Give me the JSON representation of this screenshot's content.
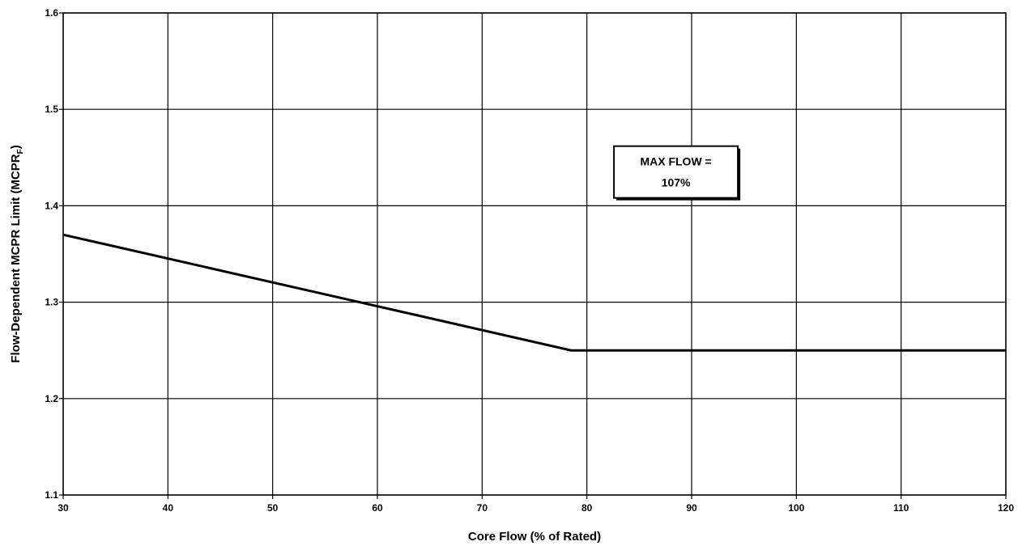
{
  "chart_data": {
    "type": "line",
    "title": "",
    "xlabel": "Core Flow (% of Rated)",
    "ylabel_main": "Flow-Dependent MCPR Limit (MCPR",
    "ylabel_sub": "F",
    "ylabel_close": ")",
    "xlim": [
      30,
      120
    ],
    "ylim": [
      1.1,
      1.6
    ],
    "x_ticks": [
      30,
      40,
      50,
      60,
      70,
      80,
      90,
      100,
      110,
      120
    ],
    "x_tick_labels": [
      "30",
      "40",
      "50",
      "60",
      "70",
      "80",
      "90",
      "100",
      "110",
      "120"
    ],
    "y_ticks": [
      1.1,
      1.2,
      1.3,
      1.4,
      1.5,
      1.6
    ],
    "y_tick_labels": [
      "1.1",
      "1.2",
      "1.3",
      "1.4",
      "1.5",
      "1.6"
    ],
    "grid": true,
    "legend": "none",
    "series": [
      {
        "color": "#000000",
        "x": [
          30,
          78.5,
          120
        ],
        "y": [
          1.37,
          1.25,
          1.25
        ]
      }
    ],
    "annotations": [
      {
        "lines": [
          "MAX FLOW =",
          "107%"
        ],
        "x": 88.5,
        "y": 1.435
      }
    ]
  }
}
